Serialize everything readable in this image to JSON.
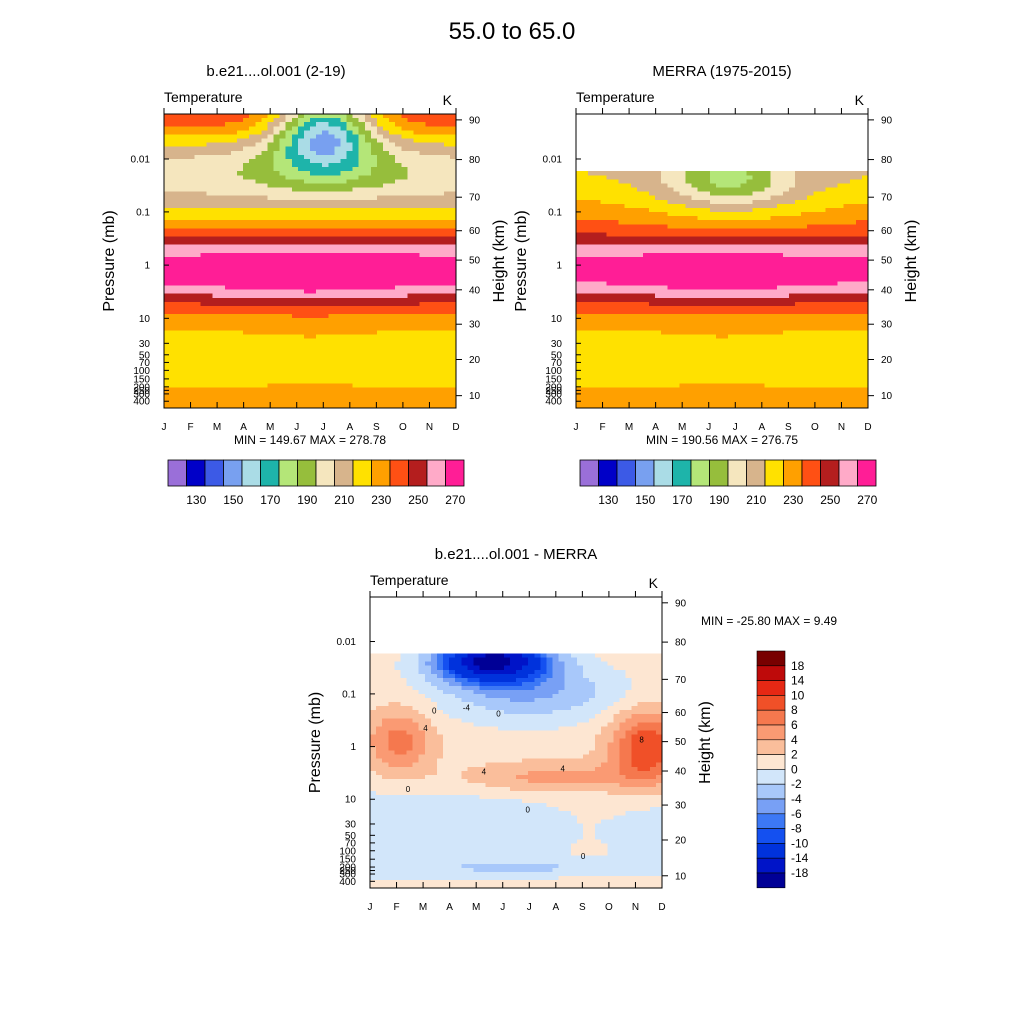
{
  "page_title": "55.0 to  65.0",
  "palette_abs": [
    "#9a6fd9",
    "#0000c8",
    "#3c5ae6",
    "#78a0f0",
    "#aadce6",
    "#1eb4aa",
    "#b4e678",
    "#96be3c",
    "#f5e6be",
    "#d7b48c",
    "#ffe100",
    "#ffa000",
    "#ff5014",
    "#b41e1e",
    "#ffaac8",
    "#ff1e96"
  ],
  "palette_diff": [
    "#000096",
    "#0014c8",
    "#0032dc",
    "#1450f0",
    "#3c78f5",
    "#78a0f5",
    "#a8c8fa",
    "#d2e6fa",
    "#fde6d2",
    "#fabe9b",
    "#fa9a73",
    "#f5784e",
    "#f05028",
    "#e62814",
    "#be0a0a",
    "#780000"
  ],
  "chart_data": [
    {
      "type": "heatmap",
      "title": "b.e21....ol.001 (2-19)",
      "left_label": "Temperature",
      "right_label": "K",
      "ylabel": "Pressure (mb)",
      "ylabel_right": "Height (km)",
      "x": [
        "J",
        "F",
        "M",
        "A",
        "M",
        "J",
        "J",
        "A",
        "S",
        "O",
        "N",
        "D"
      ],
      "pressure_ticks": [
        "0.01",
        "0.1",
        "1",
        "10",
        "30",
        "50",
        "70",
        "100",
        "150",
        "200",
        "250",
        "300",
        "400"
      ],
      "height_ticks": [
        "90",
        "80",
        "70",
        "60",
        "50",
        "40",
        "30",
        "20",
        "10"
      ],
      "min_max_text": "MIN = 149.67  MAX = 278.78",
      "min": 149.67,
      "max": 278.78,
      "colorbar_labels": [
        "130",
        "150",
        "170",
        "190",
        "210",
        "230",
        "250",
        "270"
      ],
      "top_missing_fraction": 0
    },
    {
      "type": "heatmap",
      "title": "MERRA (1975-2015)",
      "left_label": "Temperature",
      "right_label": "K",
      "ylabel": "Pressure (mb)",
      "ylabel_right": "Height (km)",
      "x": [
        "J",
        "F",
        "M",
        "A",
        "M",
        "J",
        "J",
        "A",
        "S",
        "O",
        "N",
        "D"
      ],
      "pressure_ticks": [
        "0.01",
        "0.1",
        "1",
        "10",
        "30",
        "50",
        "70",
        "100",
        "150",
        "200",
        "250",
        "300",
        "400"
      ],
      "height_ticks": [
        "90",
        "80",
        "70",
        "60",
        "50",
        "40",
        "30",
        "20",
        "10"
      ],
      "min_max_text": "MIN = 190.56  MAX = 276.75",
      "min": 190.56,
      "max": 276.75,
      "colorbar_labels": [
        "130",
        "150",
        "170",
        "190",
        "210",
        "230",
        "250",
        "270"
      ],
      "top_missing_fraction": 0.2
    },
    {
      "type": "heatmap",
      "title": "b.e21....ol.001 - MERRA",
      "left_label": "Temperature",
      "right_label": "K",
      "ylabel": "Pressure (mb)",
      "ylabel_right": "Height (km)",
      "x": [
        "J",
        "F",
        "M",
        "A",
        "M",
        "J",
        "J",
        "A",
        "S",
        "O",
        "N",
        "D"
      ],
      "pressure_ticks": [
        "0.01",
        "0.1",
        "1",
        "10",
        "30",
        "50",
        "70",
        "100",
        "150",
        "200",
        "250",
        "300",
        "400"
      ],
      "height_ticks": [
        "90",
        "80",
        "70",
        "60",
        "50",
        "40",
        "30",
        "20",
        "10"
      ],
      "min_max_text": "MIN = -25.80  MAX =   9.49",
      "min": -25.8,
      "max": 9.49,
      "colorbar_labels": [
        "18",
        "14",
        "10",
        "8",
        "6",
        "4",
        "2",
        "0",
        "-2",
        "-4",
        "-6",
        "-8",
        "-10",
        "-14",
        "-18"
      ],
      "contour_labels": [
        "-4",
        "0",
        "4",
        "8"
      ],
      "top_missing_fraction": 0.2
    }
  ]
}
